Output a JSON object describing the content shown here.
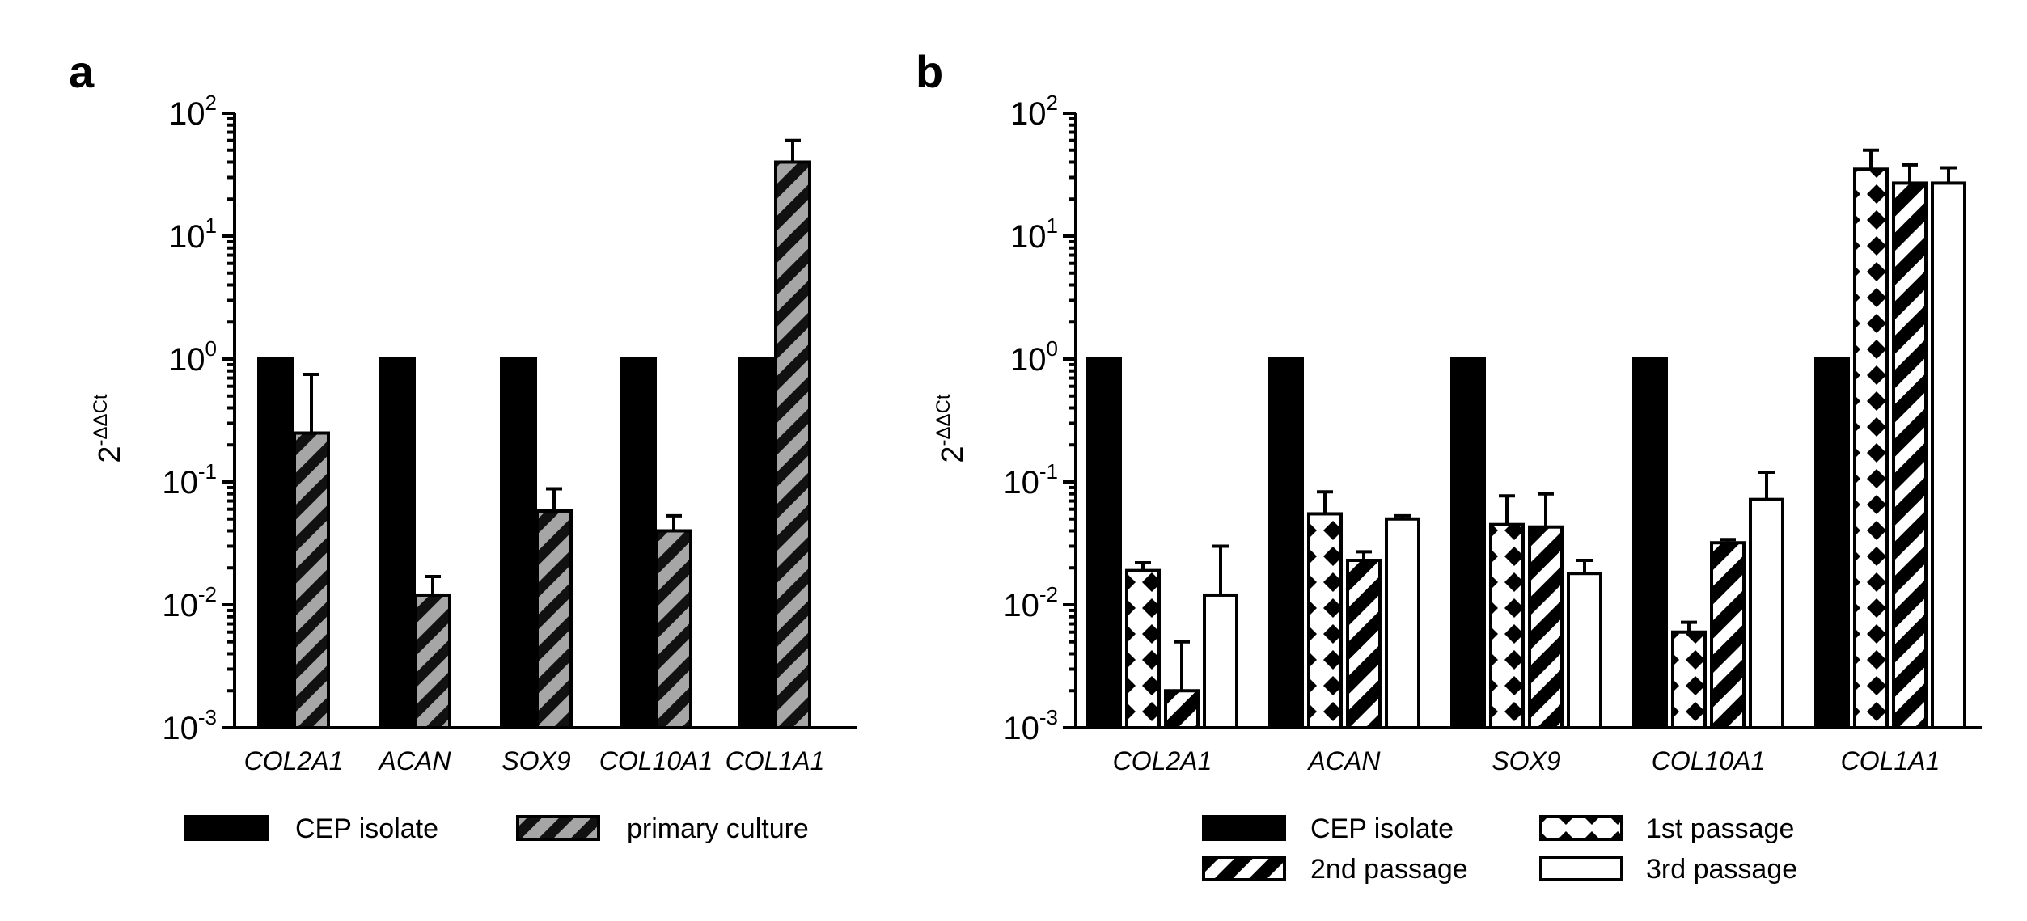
{
  "colors": {
    "ink": "#000000",
    "paper": "#ffffff",
    "gray": "#a6a6a6"
  },
  "chart_data": [
    {
      "panel": "a",
      "type": "bar",
      "scale": "log",
      "ylabel_base": "2",
      "ylabel_exp": "-ΔΔCt",
      "ylim": [
        0.001,
        100
      ],
      "ytick_base": "10",
      "yticks": [
        -3,
        -2,
        -1,
        0,
        1,
        2
      ],
      "ytick_exp_labels": [
        "-3",
        "-2",
        "-1",
        "0",
        "1",
        "2"
      ],
      "categories": [
        "COL2A1",
        "ACAN",
        "SOX9",
        "COL10A1",
        "COL1A1"
      ],
      "series": [
        {
          "name": "CEP isolate",
          "pattern": "solid-black",
          "values": [
            1,
            1,
            1,
            1,
            1
          ],
          "errors": [
            null,
            null,
            null,
            null,
            null
          ]
        },
        {
          "name": "primary culture",
          "pattern": "gray-stripe",
          "values": [
            0.25,
            0.012,
            0.058,
            0.04,
            40
          ],
          "errors": [
            0.75,
            0.017,
            0.088,
            0.053,
            60
          ]
        }
      ],
      "legend_position": "bottom"
    },
    {
      "panel": "b",
      "type": "bar",
      "scale": "log",
      "ylabel_base": "2",
      "ylabel_exp": "-ΔΔCt",
      "ylim": [
        0.001,
        100
      ],
      "ytick_base": "10",
      "yticks": [
        -3,
        -2,
        -1,
        0,
        1,
        2
      ],
      "ytick_exp_labels": [
        "-3",
        "-2",
        "-1",
        "0",
        "1",
        "2"
      ],
      "categories": [
        "COL2A1",
        "ACAN",
        "SOX9",
        "COL10A1",
        "COL1A1"
      ],
      "series": [
        {
          "name": "CEP isolate",
          "pattern": "solid-black",
          "values": [
            1,
            1,
            1,
            1,
            1
          ],
          "errors": [
            null,
            null,
            null,
            null,
            null
          ]
        },
        {
          "name": "1st passage",
          "pattern": "diamond",
          "values": [
            0.019,
            0.055,
            0.045,
            0.006,
            35
          ],
          "errors": [
            0.022,
            0.083,
            0.077,
            0.0072,
            50
          ]
        },
        {
          "name": "2nd passage",
          "pattern": "bold-stripe",
          "values": [
            0.002,
            0.023,
            0.043,
            0.032,
            27
          ],
          "errors": [
            0.005,
            0.027,
            0.08,
            0.034,
            38
          ]
        },
        {
          "name": "3rd passage",
          "pattern": "white",
          "values": [
            0.012,
            0.05,
            0.018,
            0.072,
            27
          ],
          "errors": [
            0.03,
            0.053,
            0.023,
            0.12,
            36
          ]
        }
      ],
      "legend_position": "bottom"
    }
  ]
}
